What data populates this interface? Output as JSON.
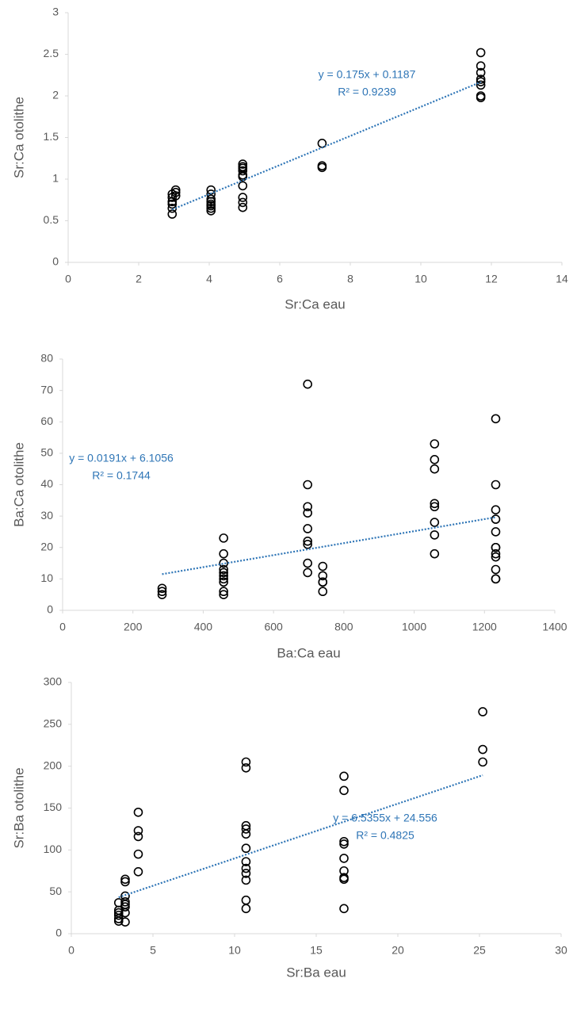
{
  "chart_data": [
    {
      "type": "scatter",
      "x_label": "Sr:Ca eau",
      "y_label": "Sr:Ca otolithe",
      "color": "#000000",
      "x": [
        2.95,
        2.95,
        2.95,
        2.95,
        2.95,
        2.95,
        3.05,
        3.05,
        3.05,
        4.05,
        4.05,
        4.05,
        4.05,
        4.05,
        4.05,
        4.05,
        4.05,
        4.95,
        4.95,
        4.95,
        4.95,
        4.95,
        4.95,
        4.95,
        4.95,
        4.95,
        4.95,
        7.2,
        7.2,
        7.2,
        11.7,
        11.7,
        11.7,
        11.7,
        11.7,
        11.7,
        11.7,
        11.7
      ],
      "values": [
        0.58,
        0.65,
        0.7,
        0.73,
        0.78,
        0.82,
        0.8,
        0.84,
        0.87,
        0.62,
        0.65,
        0.68,
        0.7,
        0.73,
        0.76,
        0.82,
        0.87,
        0.66,
        0.72,
        0.78,
        0.92,
        1.03,
        1.05,
        1.1,
        1.13,
        1.15,
        1.18,
        1.14,
        1.16,
        1.43,
        1.98,
        2.0,
        2.13,
        2.17,
        2.2,
        2.28,
        2.36,
        2.52
      ],
      "xlim": [
        0,
        14
      ],
      "xticks": [
        0,
        2,
        4,
        6,
        8,
        10,
        12,
        14
      ],
      "ylim": [
        0,
        3
      ],
      "yticks": [
        0,
        0.5,
        1,
        1.5,
        2,
        2.5,
        3
      ],
      "trendline": {
        "slope": 0.175,
        "intercept": 0.1187,
        "color": "#2e75b6"
      },
      "annotations": [
        "y = 0.175x + 0.1187",
        "R² = 0.9239"
      ]
    },
    {
      "type": "scatter",
      "x_label": "Ba:Ca eau",
      "y_label": "Ba:Ca otolithe",
      "color": "#000000",
      "x": [
        283,
        283,
        283,
        458,
        458,
        458,
        458,
        458,
        458,
        458,
        458,
        458,
        458,
        697,
        697,
        697,
        697,
        697,
        697,
        697,
        697,
        697,
        740,
        740,
        740,
        740,
        740,
        1058,
        1058,
        1058,
        1058,
        1058,
        1058,
        1058,
        1058,
        1232,
        1232,
        1232,
        1232,
        1232,
        1232,
        1232,
        1232,
        1232,
        1232,
        1232,
        1232
      ],
      "values": [
        5,
        6,
        7,
        5,
        6,
        9,
        10,
        11,
        12,
        13,
        15,
        18,
        23,
        12,
        15,
        21,
        22,
        26,
        31,
        33,
        40,
        72,
        6,
        9,
        9,
        11,
        14,
        18,
        24,
        28,
        33,
        34,
        45,
        48,
        53,
        10,
        10,
        13,
        17,
        18,
        20,
        20,
        25,
        29,
        32,
        40,
        61
      ],
      "xlim": [
        0,
        1400
      ],
      "xticks": [
        0,
        200,
        400,
        600,
        800,
        1000,
        1200,
        1400
      ],
      "ylim": [
        0,
        80
      ],
      "yticks": [
        0,
        10,
        20,
        30,
        40,
        50,
        60,
        70,
        80
      ],
      "trendline": {
        "slope": 0.0191,
        "intercept": 6.1056,
        "color": "#2e75b6"
      },
      "annotations": [
        "y = 0.0191x + 6.1056",
        "R² = 0.1744"
      ]
    },
    {
      "type": "scatter",
      "x_label": "Sr:Ba eau",
      "y_label": "Sr:Ba otolithe",
      "color": "#000000",
      "x": [
        2.9,
        2.9,
        2.9,
        2.9,
        2.9,
        2.9,
        3.3,
        3.3,
        3.3,
        3.3,
        3.3,
        3.3,
        3.3,
        3.3,
        4.1,
        4.1,
        4.1,
        4.1,
        4.1,
        10.7,
        10.7,
        10.7,
        10.7,
        10.7,
        10.7,
        10.7,
        10.7,
        10.7,
        10.7,
        10.7,
        10.7,
        16.7,
        16.7,
        16.7,
        16.7,
        16.7,
        16.7,
        16.7,
        16.7,
        16.7,
        25.2,
        25.2,
        25.2
      ],
      "values": [
        15,
        18,
        22,
        25,
        28,
        37,
        14,
        25,
        32,
        35,
        38,
        45,
        62,
        65,
        74,
        95,
        116,
        123,
        145,
        30,
        40,
        64,
        72,
        78,
        86,
        102,
        119,
        125,
        129,
        198,
        205,
        30,
        65,
        67,
        75,
        90,
        107,
        110,
        171,
        188,
        205,
        220,
        265
      ],
      "xlim": [
        0,
        30
      ],
      "xticks": [
        0,
        5,
        10,
        15,
        20,
        25,
        30
      ],
      "ylim": [
        0,
        300
      ],
      "yticks": [
        0,
        50,
        100,
        150,
        200,
        250,
        300
      ],
      "trendline": {
        "slope": 6.5355,
        "intercept": 24.556,
        "color": "#2e75b6"
      },
      "annotations": [
        "y = 6.5355x + 24.556",
        "R² = 0.4825"
      ]
    }
  ]
}
